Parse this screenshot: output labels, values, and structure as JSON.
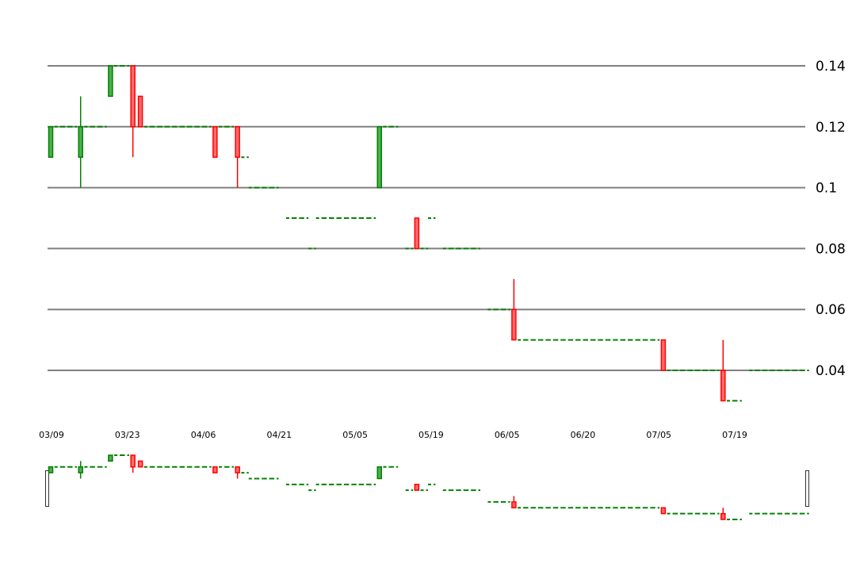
{
  "chart_data": {
    "type": "candlestick",
    "title": "",
    "xlabel": "",
    "ylabel": "",
    "y_ticks": [
      "0.14",
      "0.12",
      "0.1",
      "0.08",
      "0.06",
      "0.04"
    ],
    "ylim": [
      0.03,
      0.14
    ],
    "grid": true,
    "x_ticks": [
      "03/09",
      "03/23",
      "04/06",
      "04/21",
      "05/05",
      "05/19",
      "06/05",
      "06/20",
      "07/05",
      "07/19"
    ],
    "colors": {
      "up": "#008000",
      "down": "#ff0000",
      "grid": "#808080"
    },
    "candles": [
      {
        "o": 0.11,
        "h": 0.12,
        "l": 0.11,
        "c": 0.12
      },
      {
        "o": 0.12,
        "h": 0.12,
        "l": 0.12,
        "c": 0.12
      },
      {
        "o": 0.12,
        "h": 0.12,
        "l": 0.12,
        "c": 0.12
      },
      {
        "o": 0.12,
        "h": 0.12,
        "l": 0.12,
        "c": 0.12
      },
      {
        "o": 0.11,
        "h": 0.13,
        "l": 0.1,
        "c": 0.12
      },
      {
        "o": 0.12,
        "h": 0.12,
        "l": 0.12,
        "c": 0.12
      },
      {
        "o": 0.12,
        "h": 0.12,
        "l": 0.12,
        "c": 0.12
      },
      {
        "o": 0.12,
        "h": 0.12,
        "l": 0.12,
        "c": 0.12
      },
      {
        "o": 0.13,
        "h": 0.14,
        "l": 0.13,
        "c": 0.14
      },
      {
        "o": 0.14,
        "h": 0.14,
        "l": 0.14,
        "c": 0.14
      },
      {
        "o": 0.14,
        "h": 0.14,
        "l": 0.14,
        "c": 0.14
      },
      {
        "o": 0.14,
        "h": 0.14,
        "l": 0.11,
        "c": 0.12
      },
      {
        "o": 0.13,
        "h": 0.13,
        "l": 0.12,
        "c": 0.12
      },
      {
        "o": 0.12,
        "h": 0.12,
        "l": 0.12,
        "c": 0.12
      },
      {
        "o": 0.12,
        "h": 0.12,
        "l": 0.12,
        "c": 0.12
      },
      {
        "o": 0.12,
        "h": 0.12,
        "l": 0.12,
        "c": 0.12
      },
      {
        "o": 0.12,
        "h": 0.12,
        "l": 0.12,
        "c": 0.12
      },
      {
        "o": 0.12,
        "h": 0.12,
        "l": 0.12,
        "c": 0.12
      },
      {
        "o": 0.12,
        "h": 0.12,
        "l": 0.12,
        "c": 0.12
      },
      {
        "o": 0.12,
        "h": 0.12,
        "l": 0.12,
        "c": 0.12
      },
      {
        "o": 0.12,
        "h": 0.12,
        "l": 0.12,
        "c": 0.12
      },
      {
        "o": 0.12,
        "h": 0.12,
        "l": 0.12,
        "c": 0.12
      },
      {
        "o": 0.12,
        "h": 0.12,
        "l": 0.11,
        "c": 0.11
      },
      {
        "o": 0.12,
        "h": 0.12,
        "l": 0.12,
        "c": 0.12
      },
      {
        "o": 0.12,
        "h": 0.12,
        "l": 0.12,
        "c": 0.12
      },
      {
        "o": 0.12,
        "h": 0.12,
        "l": 0.1,
        "c": 0.11
      },
      {
        "o": 0.11,
        "h": 0.11,
        "l": 0.11,
        "c": 0.11
      },
      {
        "o": 0.1,
        "h": 0.1,
        "l": 0.1,
        "c": 0.1
      },
      {
        "o": 0.1,
        "h": 0.1,
        "l": 0.1,
        "c": 0.1
      },
      {
        "o": 0.1,
        "h": 0.1,
        "l": 0.1,
        "c": 0.1
      },
      {
        "o": 0.1,
        "h": 0.1,
        "l": 0.1,
        "c": 0.1
      },
      null,
      {
        "o": 0.09,
        "h": 0.09,
        "l": 0.09,
        "c": 0.09
      },
      {
        "o": 0.09,
        "h": 0.09,
        "l": 0.09,
        "c": 0.09
      },
      {
        "o": 0.09,
        "h": 0.09,
        "l": 0.09,
        "c": 0.09
      },
      {
        "o": 0.08,
        "h": 0.08,
        "l": 0.08,
        "c": 0.08
      },
      {
        "o": 0.09,
        "h": 0.09,
        "l": 0.09,
        "c": 0.09
      },
      {
        "o": 0.09,
        "h": 0.09,
        "l": 0.09,
        "c": 0.09
      },
      {
        "o": 0.09,
        "h": 0.09,
        "l": 0.09,
        "c": 0.09
      },
      {
        "o": 0.09,
        "h": 0.09,
        "l": 0.09,
        "c": 0.09
      },
      {
        "o": 0.09,
        "h": 0.09,
        "l": 0.09,
        "c": 0.09
      },
      {
        "o": 0.09,
        "h": 0.09,
        "l": 0.09,
        "c": 0.09
      },
      {
        "o": 0.09,
        "h": 0.09,
        "l": 0.09,
        "c": 0.09
      },
      {
        "o": 0.09,
        "h": 0.09,
        "l": 0.09,
        "c": 0.09
      },
      {
        "o": 0.1,
        "h": 0.12,
        "l": 0.1,
        "c": 0.12
      },
      {
        "o": 0.12,
        "h": 0.12,
        "l": 0.12,
        "c": 0.12
      },
      {
        "o": 0.12,
        "h": 0.12,
        "l": 0.12,
        "c": 0.12
      },
      null,
      {
        "o": 0.08,
        "h": 0.08,
        "l": 0.08,
        "c": 0.08
      },
      {
        "o": 0.09,
        "h": 0.09,
        "l": 0.08,
        "c": 0.08
      },
      {
        "o": 0.08,
        "h": 0.08,
        "l": 0.08,
        "c": 0.08
      },
      {
        "o": 0.09,
        "h": 0.09,
        "l": 0.09,
        "c": 0.09
      },
      null,
      {
        "o": 0.08,
        "h": 0.08,
        "l": 0.08,
        "c": 0.08
      },
      {
        "o": 0.08,
        "h": 0.08,
        "l": 0.08,
        "c": 0.08
      },
      {
        "o": 0.08,
        "h": 0.08,
        "l": 0.08,
        "c": 0.08
      },
      {
        "o": 0.08,
        "h": 0.08,
        "l": 0.08,
        "c": 0.08
      },
      {
        "o": 0.08,
        "h": 0.08,
        "l": 0.08,
        "c": 0.08
      },
      null,
      {
        "o": 0.06,
        "h": 0.06,
        "l": 0.06,
        "c": 0.06
      },
      {
        "o": 0.06,
        "h": 0.06,
        "l": 0.06,
        "c": 0.06
      },
      {
        "o": 0.06,
        "h": 0.06,
        "l": 0.06,
        "c": 0.06
      },
      {
        "o": 0.06,
        "h": 0.07,
        "l": 0.05,
        "c": 0.05
      },
      {
        "o": 0.05,
        "h": 0.05,
        "l": 0.05,
        "c": 0.05
      },
      {
        "o": 0.05,
        "h": 0.05,
        "l": 0.05,
        "c": 0.05
      },
      {
        "o": 0.05,
        "h": 0.05,
        "l": 0.05,
        "c": 0.05
      },
      {
        "o": 0.05,
        "h": 0.05,
        "l": 0.05,
        "c": 0.05
      },
      {
        "o": 0.05,
        "h": 0.05,
        "l": 0.05,
        "c": 0.05
      },
      {
        "o": 0.05,
        "h": 0.05,
        "l": 0.05,
        "c": 0.05
      },
      {
        "o": 0.05,
        "h": 0.05,
        "l": 0.05,
        "c": 0.05
      },
      {
        "o": 0.05,
        "h": 0.05,
        "l": 0.05,
        "c": 0.05
      },
      {
        "o": 0.05,
        "h": 0.05,
        "l": 0.05,
        "c": 0.05
      },
      {
        "o": 0.05,
        "h": 0.05,
        "l": 0.05,
        "c": 0.05
      },
      {
        "o": 0.05,
        "h": 0.05,
        "l": 0.05,
        "c": 0.05
      },
      {
        "o": 0.05,
        "h": 0.05,
        "l": 0.05,
        "c": 0.05
      },
      {
        "o": 0.05,
        "h": 0.05,
        "l": 0.05,
        "c": 0.05
      },
      {
        "o": 0.05,
        "h": 0.05,
        "l": 0.05,
        "c": 0.05
      },
      {
        "o": 0.05,
        "h": 0.05,
        "l": 0.05,
        "c": 0.05
      },
      {
        "o": 0.05,
        "h": 0.05,
        "l": 0.05,
        "c": 0.05
      },
      {
        "o": 0.05,
        "h": 0.05,
        "l": 0.05,
        "c": 0.05
      },
      {
        "o": 0.05,
        "h": 0.05,
        "l": 0.05,
        "c": 0.05
      },
      {
        "o": 0.05,
        "h": 0.05,
        "l": 0.05,
        "c": 0.05
      },
      {
        "o": 0.05,
        "h": 0.05,
        "l": 0.04,
        "c": 0.04
      },
      {
        "o": 0.04,
        "h": 0.04,
        "l": 0.04,
        "c": 0.04
      },
      {
        "o": 0.04,
        "h": 0.04,
        "l": 0.04,
        "c": 0.04
      },
      {
        "o": 0.04,
        "h": 0.04,
        "l": 0.04,
        "c": 0.04
      },
      {
        "o": 0.04,
        "h": 0.04,
        "l": 0.04,
        "c": 0.04
      },
      {
        "o": 0.04,
        "h": 0.04,
        "l": 0.04,
        "c": 0.04
      },
      {
        "o": 0.04,
        "h": 0.04,
        "l": 0.04,
        "c": 0.04
      },
      {
        "o": 0.04,
        "h": 0.04,
        "l": 0.04,
        "c": 0.04
      },
      {
        "o": 0.04,
        "h": 0.05,
        "l": 0.03,
        "c": 0.03
      },
      {
        "o": 0.03,
        "h": 0.03,
        "l": 0.03,
        "c": 0.03
      },
      {
        "o": 0.03,
        "h": 0.03,
        "l": 0.03,
        "c": 0.03
      },
      null,
      {
        "o": 0.04,
        "h": 0.04,
        "l": 0.04,
        "c": 0.04
      },
      {
        "o": 0.04,
        "h": 0.04,
        "l": 0.04,
        "c": 0.04
      },
      {
        "o": 0.04,
        "h": 0.04,
        "l": 0.04,
        "c": 0.04
      },
      {
        "o": 0.04,
        "h": 0.04,
        "l": 0.04,
        "c": 0.04
      },
      {
        "o": 0.04,
        "h": 0.04,
        "l": 0.04,
        "c": 0.04
      },
      {
        "o": 0.04,
        "h": 0.04,
        "l": 0.04,
        "c": 0.04
      },
      {
        "o": 0.04,
        "h": 0.04,
        "l": 0.04,
        "c": 0.04
      },
      {
        "o": 0.04,
        "h": 0.04,
        "l": 0.04,
        "c": 0.04
      }
    ]
  }
}
